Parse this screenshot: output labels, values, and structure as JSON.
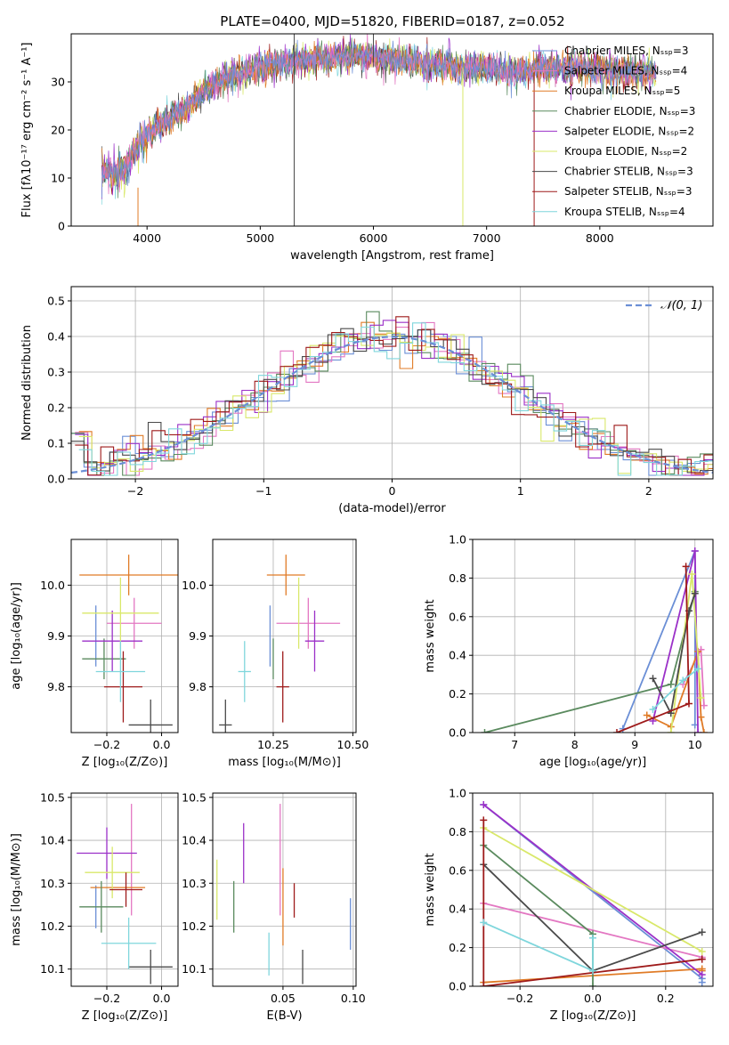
{
  "title": "PLATE=0400, MJD=51820, FIBERID=0187, z=0.052",
  "colors": {
    "Chabrier MILES": "#6b8fd6",
    "Salpeter MILES": "#e377c2",
    "Kroupa MILES": "#e07b26",
    "Chabrier ELODIE": "#5a8a5e",
    "Salpeter ELODIE": "#9b30c8",
    "Kroupa ELODIE": "#d9e86a",
    "Chabrier STELIB": "#4a4a4a",
    "Salpeter STELIB": "#9e1a1a",
    "Kroupa STELIB": "#7fd6dc"
  },
  "chart_data": [
    {
      "id": "spectrum",
      "type": "line",
      "xlabel": "wavelength [Angstrom, rest frame]",
      "ylabel": "Flux [fλ10⁻¹⁷ erg cm⁻² s⁻¹ A⁻¹]",
      "xlim": [
        3330,
        9000
      ],
      "ylim": [
        0,
        40
      ],
      "xticks": [
        4000,
        5000,
        6000,
        7000,
        8000
      ],
      "yticks": [
        0,
        10,
        20,
        30
      ],
      "legend_position": "right",
      "legend": [
        "Chabrier MILES, Nₛₛₚ=3",
        "Salpeter MILES, Nₛₛₚ=4",
        "Kroupa MILES, Nₛₛₚ=5",
        "Chabrier ELODIE, Nₛₛₚ=3",
        "Salpeter ELODIE, Nₛₛₚ=2",
        "Kroupa ELODIE, Nₛₛₚ=2",
        "Chabrier STELIB, Nₛₛₚ=3",
        "Salpeter STELIB, Nₛₛₚ=3",
        "Kroupa STELIB, Nₛₛₚ=4"
      ],
      "continuum": [
        [
          3600,
          11
        ],
        [
          3800,
          12
        ],
        [
          3950,
          18
        ],
        [
          4100,
          21
        ],
        [
          4300,
          24
        ],
        [
          4500,
          28
        ],
        [
          4700,
          31
        ],
        [
          5000,
          33
        ],
        [
          5300,
          34.5
        ],
        [
          5600,
          35
        ],
        [
          5800,
          35.5
        ],
        [
          6000,
          35
        ],
        [
          6200,
          34.5
        ],
        [
          6500,
          34
        ],
        [
          6800,
          33
        ],
        [
          7000,
          33
        ],
        [
          7200,
          32
        ],
        [
          7500,
          33
        ],
        [
          7800,
          33
        ],
        [
          8000,
          32.5
        ],
        [
          8300,
          32
        ],
        [
          8500,
          32
        ]
      ],
      "spikes": [
        {
          "series": "Chabrier STELIB",
          "x": 5300,
          "y_low": 0,
          "y_high": 40
        },
        {
          "series": "Chabrier STELIB",
          "x": 6000,
          "y_low": 34,
          "y_high": 40
        },
        {
          "series": "Kroupa ELODIE",
          "x": 6790,
          "y_low": 0,
          "y_high": 33
        },
        {
          "series": "Salpeter STELIB",
          "x": 7420,
          "y_low": 0,
          "y_high": 32
        },
        {
          "series": "Kroupa MILES",
          "x": 3920,
          "y_low": 0,
          "y_high": 8
        }
      ]
    },
    {
      "id": "residuals",
      "type": "bar",
      "xlabel": "(data-model)/error",
      "ylabel": "Normed distribution",
      "xlim": [
        -2.5,
        2.5
      ],
      "ylim": [
        0,
        0.54
      ],
      "xticks": [
        -2,
        -1,
        0,
        1,
        2
      ],
      "yticks": [
        0.0,
        0.1,
        0.2,
        0.3,
        0.4,
        0.5
      ],
      "grid": true,
      "legend_position": "top-right",
      "legend": [
        "𝒩(0, 1)"
      ],
      "bin_width": 0.1
    },
    {
      "id": "age-vs-Z",
      "type": "scatter",
      "xlabel": "Z [log₁₀(Z/Z⊙)]",
      "ylabel": "age  [log₁₀(age/yr)]",
      "xlim": [
        -0.33,
        0.06
      ],
      "ylim": [
        9.71,
        10.09
      ],
      "xticks": [
        -0.2,
        0.0
      ],
      "yticks": [
        9.8,
        9.9,
        10.0
      ],
      "points": [
        {
          "series": "Chabrier MILES",
          "x": -0.24,
          "y": 9.9,
          "xerr": 0.0,
          "yerr": 0.06
        },
        {
          "series": "Salpeter MILES",
          "x": -0.1,
          "y": 9.925,
          "xerr": 0.1,
          "yerr": 0.05
        },
        {
          "series": "Kroupa MILES",
          "x": -0.12,
          "y": 10.02,
          "xerr": 0.18,
          "yerr": 0.04
        },
        {
          "series": "Chabrier ELODIE",
          "x": -0.21,
          "y": 9.855,
          "xerr": 0.08,
          "yerr": 0.04
        },
        {
          "series": "Salpeter ELODIE",
          "x": -0.18,
          "y": 9.89,
          "xerr": 0.11,
          "yerr": 0.06
        },
        {
          "series": "Kroupa ELODIE",
          "x": -0.15,
          "y": 9.945,
          "xerr": 0.14,
          "yerr": 0.07
        },
        {
          "series": "Chabrier STELIB",
          "x": -0.04,
          "y": 9.725,
          "xerr": 0.08,
          "yerr": 0.05
        },
        {
          "series": "Salpeter STELIB",
          "x": -0.14,
          "y": 9.8,
          "xerr": 0.07,
          "yerr": 0.07
        },
        {
          "series": "Kroupa STELIB",
          "x": -0.15,
          "y": 9.83,
          "xerr": 0.09,
          "yerr": 0.06
        }
      ]
    },
    {
      "id": "age-vs-mass",
      "type": "scatter",
      "xlabel": "mass [log₁₀(M/M⊙)]",
      "ylabel": "",
      "xlim": [
        10.06,
        10.51
      ],
      "ylim": [
        9.71,
        10.09
      ],
      "xticks": [
        10.25,
        10.5
      ],
      "yticks": [
        9.8,
        9.9,
        10.0
      ],
      "points": [
        {
          "series": "Chabrier MILES",
          "x": 10.24,
          "y": 9.9,
          "xerr": 0.0,
          "yerr": 0.06
        },
        {
          "series": "Salpeter MILES",
          "x": 10.36,
          "y": 9.925,
          "xerr": 0.1,
          "yerr": 0.05
        },
        {
          "series": "Kroupa MILES",
          "x": 10.29,
          "y": 10.02,
          "xerr": 0.06,
          "yerr": 0.04
        },
        {
          "series": "Chabrier ELODIE",
          "x": 10.25,
          "y": 9.855,
          "xerr": 0.0,
          "yerr": 0.04
        },
        {
          "series": "Salpeter ELODIE",
          "x": 10.38,
          "y": 9.89,
          "xerr": 0.03,
          "yerr": 0.06
        },
        {
          "series": "Kroupa ELODIE",
          "x": 10.33,
          "y": 9.945,
          "xerr": 0.0,
          "yerr": 0.07
        },
        {
          "series": "Chabrier STELIB",
          "x": 10.1,
          "y": 9.725,
          "xerr": 0.02,
          "yerr": 0.05
        },
        {
          "series": "Salpeter STELIB",
          "x": 10.28,
          "y": 9.8,
          "xerr": 0.02,
          "yerr": 0.07
        },
        {
          "series": "Kroupa STELIB",
          "x": 10.16,
          "y": 9.83,
          "xerr": 0.02,
          "yerr": 0.06
        }
      ]
    },
    {
      "id": "mass-weight-vs-age",
      "type": "line",
      "xlabel": "age  [log₁₀(age/yr)]",
      "ylabel": "mass weight",
      "xlim": [
        6.3,
        10.3
      ],
      "ylim": [
        0,
        1
      ],
      "xticks": [
        7,
        8,
        9,
        10
      ],
      "yticks": [
        0.0,
        0.2,
        0.4,
        0.6,
        0.8,
        1.0
      ],
      "grid": true,
      "series": [
        {
          "name": "Chabrier MILES",
          "x": [
            8.8,
            10.0,
            10.0
          ],
          "y": [
            0.02,
            0.94,
            0.04
          ]
        },
        {
          "name": "Salpeter MILES",
          "x": [
            9.8,
            10.1,
            10.15
          ],
          "y": [
            0.25,
            0.43,
            0.14
          ]
        },
        {
          "name": "Kroupa MILES",
          "x": [
            9.2,
            9.6,
            10.05,
            10.1,
            10.15
          ],
          "y": [
            0.09,
            0.03,
            0.42,
            0.08,
            0.0
          ]
        },
        {
          "name": "Chabrier ELODIE",
          "x": [
            6.5,
            9.6,
            10.0
          ],
          "y": [
            0.0,
            0.25,
            0.73
          ]
        },
        {
          "name": "Salpeter ELODIE",
          "x": [
            9.3,
            10.0,
            10.05
          ],
          "y": [
            0.06,
            0.94,
            0.0
          ]
        },
        {
          "name": "Kroupa ELODIE",
          "x": [
            9.6,
            9.95,
            10.1
          ],
          "y": [
            0.0,
            0.82,
            0.18
          ]
        },
        {
          "name": "Chabrier STELIB",
          "x": [
            9.3,
            9.6,
            9.9,
            10.0
          ],
          "y": [
            0.28,
            0.1,
            0.63,
            0.72
          ]
        },
        {
          "name": "Salpeter STELIB",
          "x": [
            8.7,
            9.9,
            9.85
          ],
          "y": [
            0.0,
            0.15,
            0.86
          ]
        },
        {
          "name": "Kroupa STELIB",
          "x": [
            9.3,
            9.8,
            10.05
          ],
          "y": [
            0.12,
            0.27,
            0.33
          ]
        }
      ]
    },
    {
      "id": "mass-vs-Z",
      "type": "scatter",
      "xlabel": "Z [log₁₀(Z/Z⊙)]",
      "ylabel": "mass [log₁₀(M/M⊙)]",
      "xlim": [
        -0.33,
        0.06
      ],
      "ylim": [
        10.06,
        10.51
      ],
      "xticks": [
        -0.2,
        0.0
      ],
      "yticks": [
        10.1,
        10.2,
        10.3,
        10.4,
        10.5
      ],
      "points": [
        {
          "series": "Chabrier MILES",
          "x": -0.24,
          "y": 10.245,
          "xerr": 0.0,
          "yerr": 0.05
        },
        {
          "series": "Salpeter MILES",
          "x": -0.11,
          "y": 10.355,
          "xerr": 0.0,
          "yerr": 0.13
        },
        {
          "series": "Kroupa MILES",
          "x": -0.16,
          "y": 10.29,
          "xerr": 0.1,
          "yerr": 0.0
        },
        {
          "series": "Chabrier ELODIE",
          "x": -0.22,
          "y": 10.245,
          "xerr": 0.08,
          "yerr": 0.06
        },
        {
          "series": "Salpeter ELODIE",
          "x": -0.2,
          "y": 10.37,
          "xerr": 0.11,
          "yerr": 0.06
        },
        {
          "series": "Kroupa ELODIE",
          "x": -0.18,
          "y": 10.325,
          "xerr": 0.1,
          "yerr": 0.06
        },
        {
          "series": "Chabrier STELIB",
          "x": -0.04,
          "y": 10.105,
          "xerr": 0.08,
          "yerr": 0.04
        },
        {
          "series": "Salpeter STELIB",
          "x": -0.13,
          "y": 10.285,
          "xerr": 0.06,
          "yerr": 0.04
        },
        {
          "series": "Kroupa STELIB",
          "x": -0.12,
          "y": 10.16,
          "xerr": 0.1,
          "yerr": 0.06
        }
      ]
    },
    {
      "id": "mass-vs-EBV",
      "type": "scatter",
      "xlabel": "E(B-V)",
      "ylabel": "",
      "xlim": [
        0.0,
        0.102
      ],
      "ylim": [
        10.06,
        10.51
      ],
      "xticks": [
        0.05,
        0.1
      ],
      "yticks": [
        10.1,
        10.2,
        10.3,
        10.4,
        10.5
      ],
      "points": [
        {
          "series": "Chabrier MILES",
          "x": 0.098,
          "y": 10.205,
          "xerr": 0,
          "yerr": 0.06
        },
        {
          "series": "Salpeter MILES",
          "x": 0.048,
          "y": 10.355,
          "xerr": 0,
          "yerr": 0.13
        },
        {
          "series": "Kroupa MILES",
          "x": 0.05,
          "y": 10.245,
          "xerr": 0,
          "yerr": 0.09
        },
        {
          "series": "Chabrier ELODIE",
          "x": 0.015,
          "y": 10.245,
          "xerr": 0,
          "yerr": 0.06
        },
        {
          "series": "Salpeter ELODIE",
          "x": 0.022,
          "y": 10.37,
          "xerr": 0,
          "yerr": 0.07
        },
        {
          "series": "Kroupa ELODIE",
          "x": 0.003,
          "y": 10.285,
          "xerr": 0,
          "yerr": 0.07
        },
        {
          "series": "Chabrier STELIB",
          "x": 0.064,
          "y": 10.105,
          "xerr": 0,
          "yerr": 0.04
        },
        {
          "series": "Salpeter STELIB",
          "x": 0.058,
          "y": 10.26,
          "xerr": 0,
          "yerr": 0.04
        },
        {
          "series": "Kroupa STELIB",
          "x": 0.04,
          "y": 10.135,
          "xerr": 0,
          "yerr": 0.05
        }
      ]
    },
    {
      "id": "mass-weight-vs-Z",
      "type": "line",
      "xlabel": "Z [log₁₀(Z/Z⊙)]",
      "ylabel": "mass weight",
      "xlim": [
        -0.33,
        0.33
      ],
      "ylim": [
        0,
        1
      ],
      "xticks": [
        -0.2,
        0.0,
        0.2
      ],
      "yticks": [
        0.0,
        0.2,
        0.4,
        0.6,
        0.8,
        1.0
      ],
      "grid": true,
      "series": [
        {
          "name": "Chabrier MILES",
          "x": [
            -0.3,
            0.3,
            0.3
          ],
          "y": [
            0.94,
            0.04,
            0.02
          ]
        },
        {
          "name": "Salpeter MILES",
          "x": [
            -0.3,
            0.3,
            0.3
          ],
          "y": [
            0.43,
            0.15,
            0.14
          ]
        },
        {
          "name": "Kroupa MILES",
          "x": [
            -0.3,
            0.3,
            0.3
          ],
          "y": [
            0.02,
            0.09,
            0.08
          ]
        },
        {
          "name": "Chabrier ELODIE",
          "x": [
            -0.3,
            0.0,
            0.0
          ],
          "y": [
            0.73,
            0.27,
            0.0
          ]
        },
        {
          "name": "Salpeter ELODIE",
          "x": [
            -0.3,
            0.3
          ],
          "y": [
            0.94,
            0.06
          ]
        },
        {
          "name": "Kroupa ELODIE",
          "x": [
            -0.3,
            0.3
          ],
          "y": [
            0.82,
            0.18
          ]
        },
        {
          "name": "Chabrier STELIB",
          "x": [
            -0.3,
            0.0,
            0.3
          ],
          "y": [
            0.63,
            0.08,
            0.28
          ]
        },
        {
          "name": "Salpeter STELIB",
          "x": [
            -0.3,
            -0.3,
            0.3
          ],
          "y": [
            0.86,
            0.0,
            0.14
          ]
        },
        {
          "name": "Kroupa STELIB",
          "x": [
            -0.3,
            0.0,
            0.0
          ],
          "y": [
            0.33,
            0.08,
            0.25
          ]
        }
      ]
    }
  ]
}
